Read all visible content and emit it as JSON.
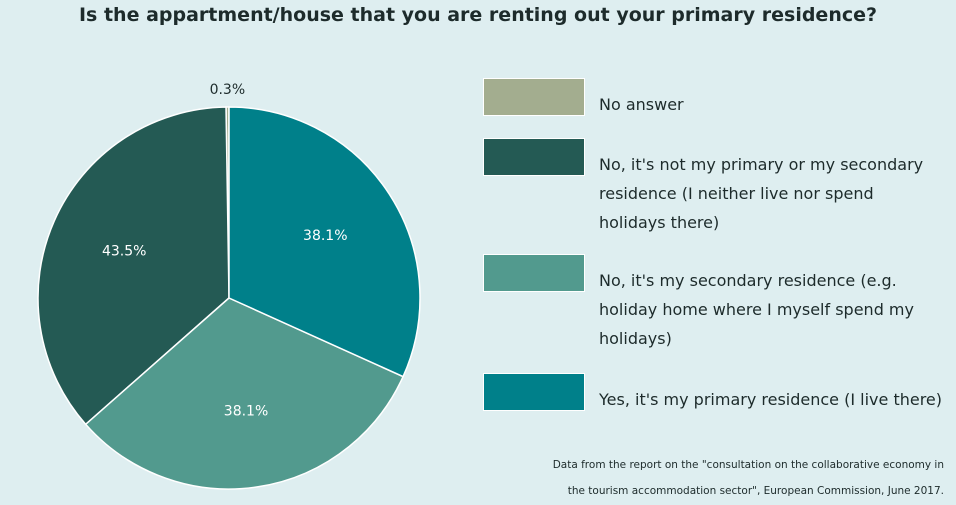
{
  "chart_data": {
    "type": "pie",
    "title": "Is the appartment/house that you are renting out your primary residence?",
    "categories": [
      "No answer",
      "No, it's not my primary or my secondary residence (I neither live nor spend holidays there)",
      "No, it's my secondary residence (e.g. holiday home where I myself spend my holidays)",
      "Yes, it's my primary residence (I live there)"
    ],
    "values": [
      0.3,
      43.5,
      38.1,
      38.1
    ],
    "value_labels": [
      "0.3%",
      "43.5%",
      "38.1%",
      "38.1%"
    ],
    "colors": [
      "#a3ad8f",
      "#245a54",
      "#529a8e",
      "#00808a"
    ],
    "source": "Data from the report on the \"consultation on the collaborative economy in the tourism accommodation sector\", European Commission, June 2017."
  }
}
